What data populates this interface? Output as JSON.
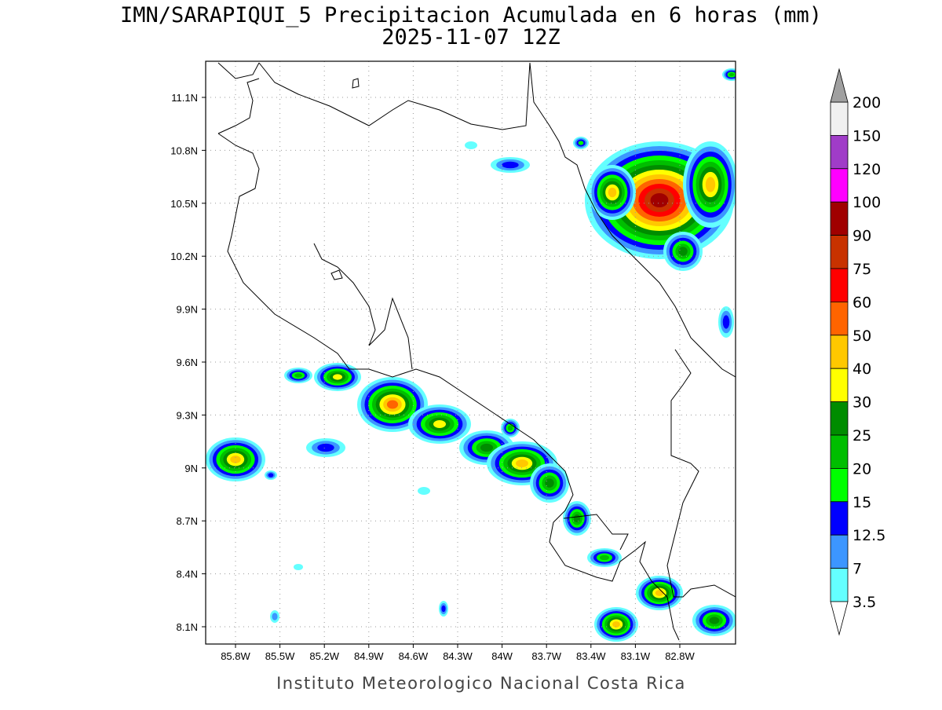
{
  "title": "IMN/SARAPIQUI_5 Precipitacion Acumulada en 6 horas (mm)",
  "subtitle": "2025-11-07 12Z",
  "lat_ticks": [
    "11.1N",
    "10.8N",
    "10.5N",
    "10.2N",
    "9.9N",
    "9.6N",
    "9.3N",
    "9N",
    "8.7N",
    "8.4N",
    "8.1N"
  ],
  "lon_ticks": [
    "85.8W",
    "85.5W",
    "85.2W",
    "84.9W",
    "84.6W",
    "84.3W",
    "84W",
    "83.7W",
    "83.4W",
    "83.1W",
    "82.8W"
  ],
  "colorbar": {
    "levels": [
      200,
      150,
      120,
      100,
      90,
      75,
      60,
      50,
      40,
      30,
      25,
      20,
      15,
      12.5,
      7,
      3.5
    ],
    "colors": [
      "#f0f0f0",
      "#a03cc8",
      "#ff00ff",
      "#a00000",
      "#c83200",
      "#ff0000",
      "#ff6400",
      "#ffc800",
      "#ffff00",
      "#008c00",
      "#00be00",
      "#00ff00",
      "#0000ff",
      "#3c96ff",
      "#64ffff"
    ],
    "over_color": "#a0a0a0",
    "under_color": "#ffffff"
  },
  "footer": "Instituto Meteorologico Nacional Costa Rica"
}
